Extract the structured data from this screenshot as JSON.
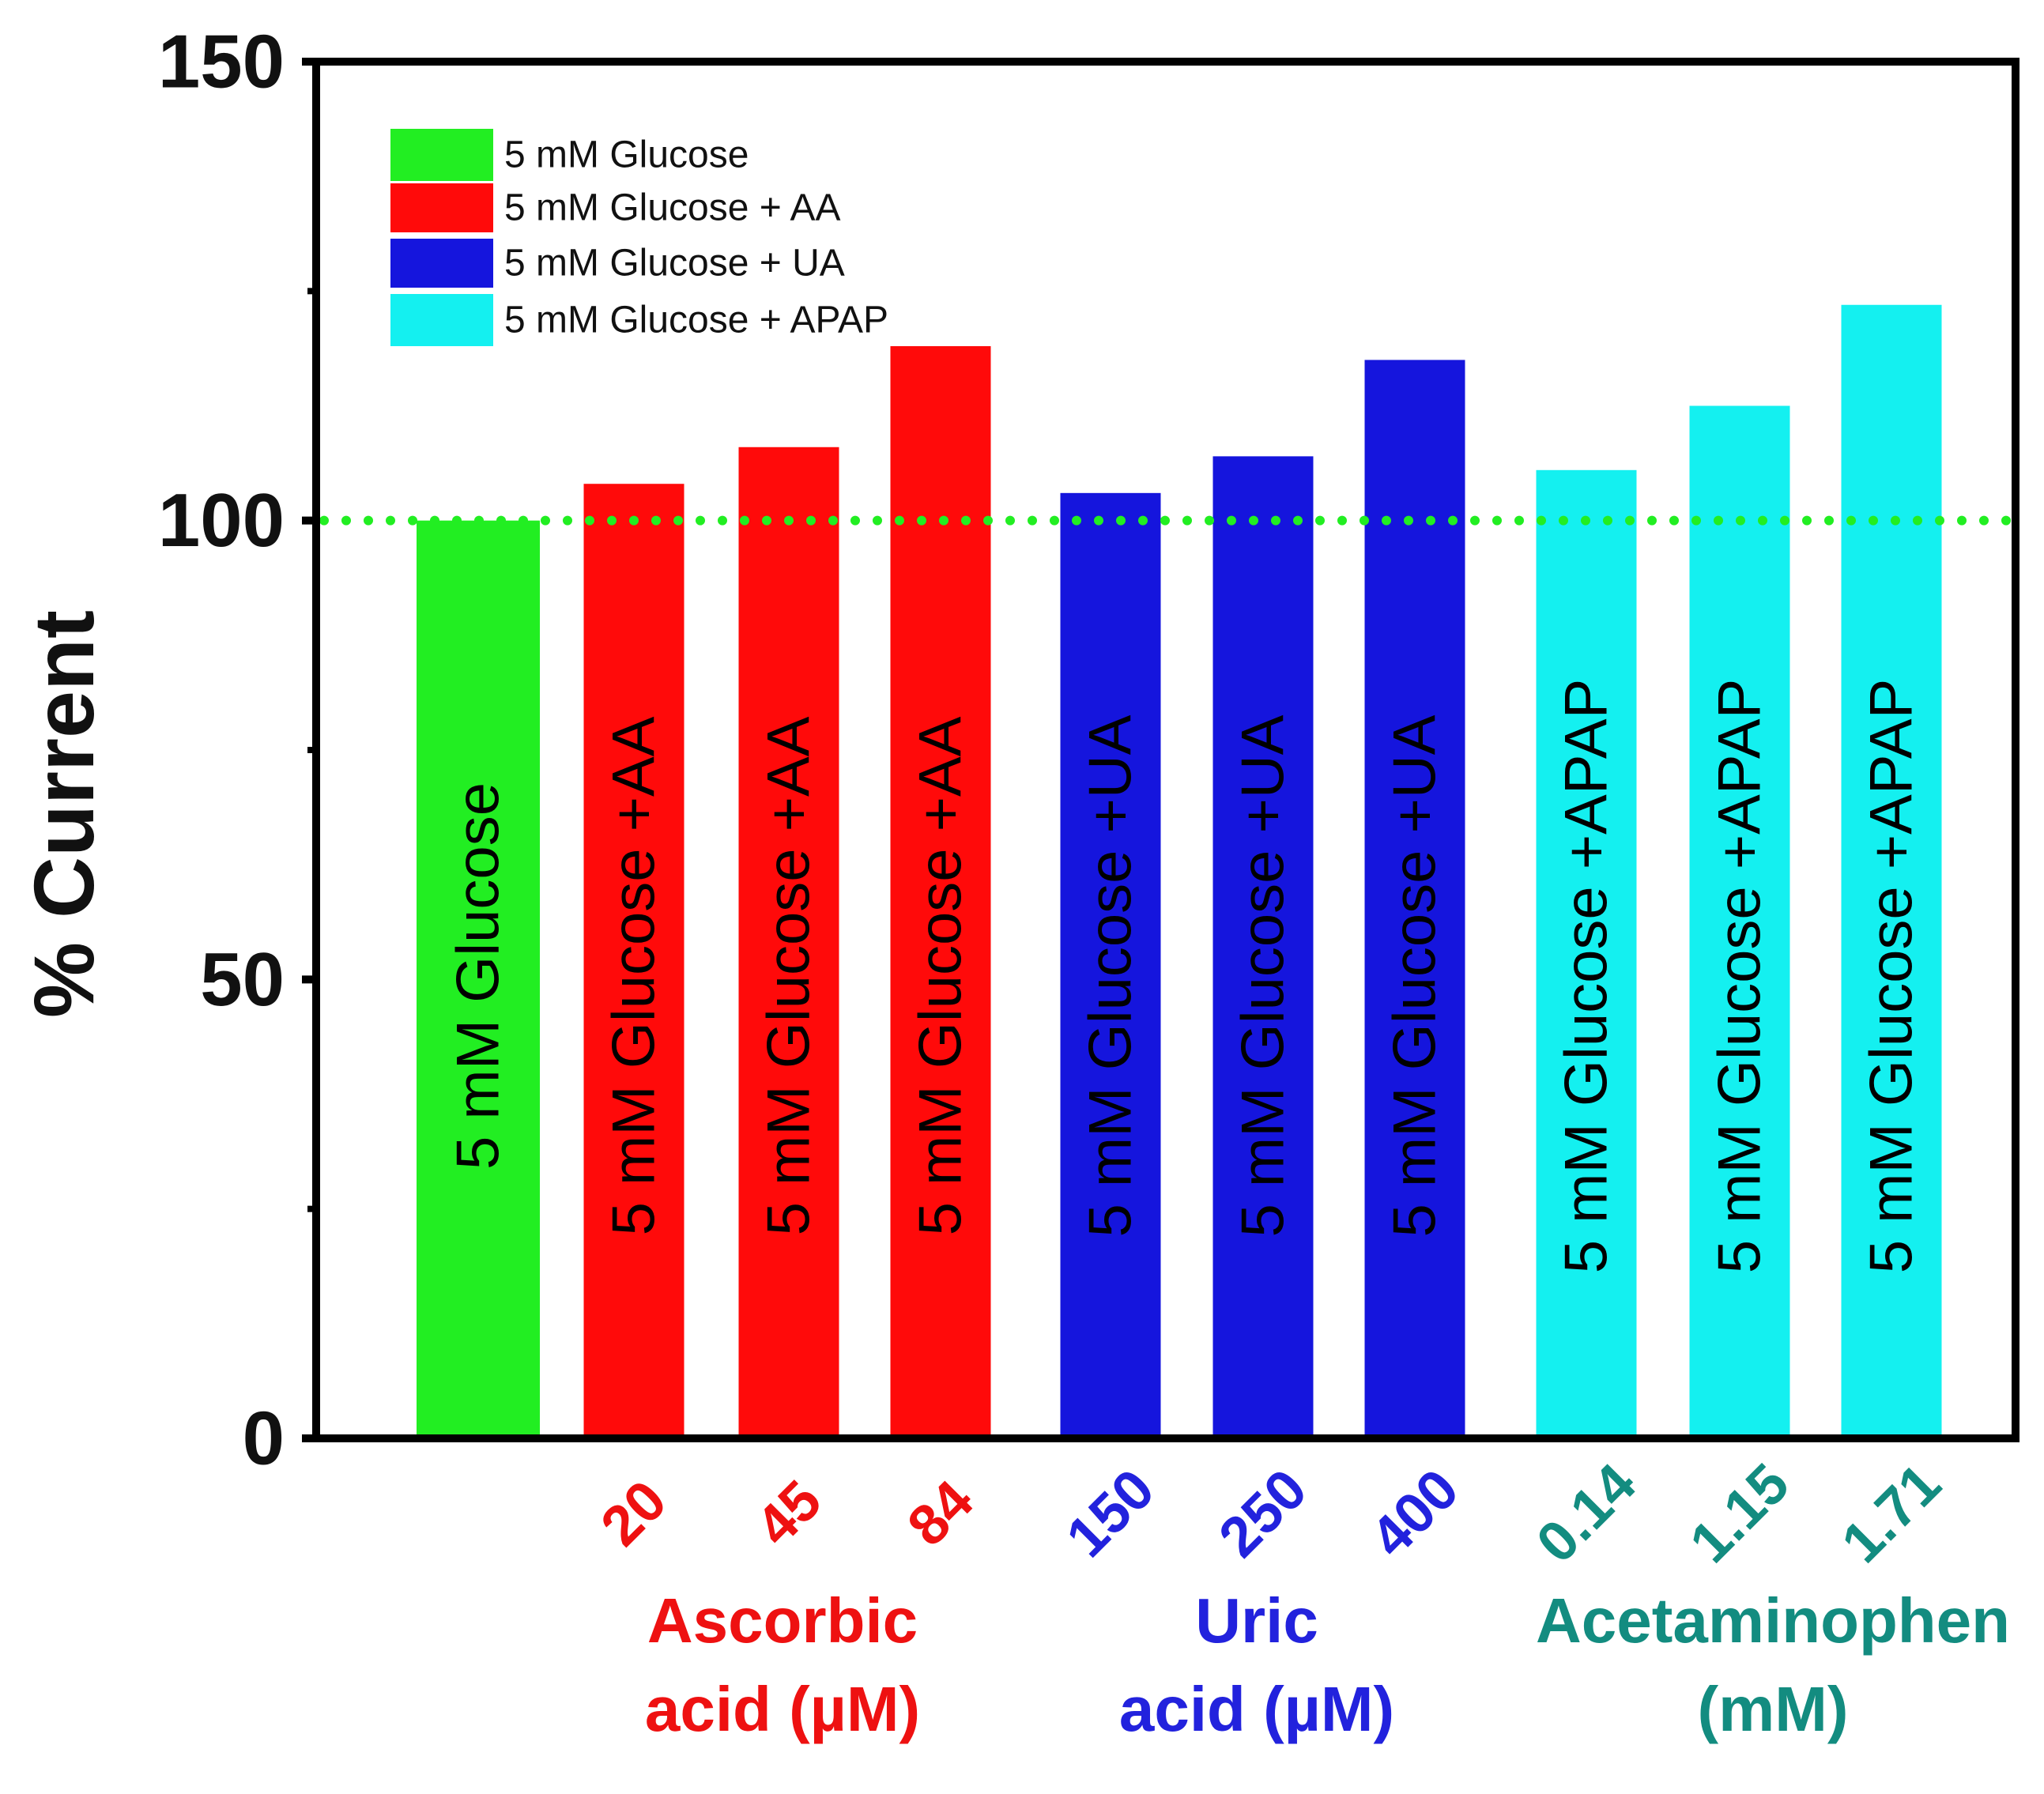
{
  "chart_data": {
    "type": "bar",
    "ylabel": "% Current",
    "ylim": [
      0,
      150
    ],
    "yticks": [
      0,
      50,
      100,
      150
    ],
    "reference_line": 100,
    "bars": [
      {
        "label": "5 mM Glucose",
        "value": 100,
        "series": "5 mM Glucose",
        "conc": ""
      },
      {
        "label": "5 mM Glucose +AA",
        "value": 104,
        "series": "5 mM Glucose + AA",
        "conc": "20"
      },
      {
        "label": "5 mM Glucose +AA",
        "value": 108,
        "series": "5 mM Glucose + AA",
        "conc": "45"
      },
      {
        "label": "5 mM Glucose +AA",
        "value": 119,
        "series": "5 mM Glucose + AA",
        "conc": "84"
      },
      {
        "label": "5 mM Glucose +UA",
        "value": 103,
        "series": "5 mM Glucose + UA",
        "conc": "150"
      },
      {
        "label": "5 mM Glucose +UA",
        "value": 107,
        "series": "5 mM Glucose + UA",
        "conc": "250"
      },
      {
        "label": "5 mM Glucose +UA",
        "value": 117.5,
        "series": "5 mM Glucose + UA",
        "conc": "400"
      },
      {
        "label": "5 mM Glucose +APAP",
        "value": 105.5,
        "series": "5 mM Glucose + APAP",
        "conc": "0.14"
      },
      {
        "label": "5 mM Glucose +APAP",
        "value": 112.5,
        "series": "5 mM Glucose + APAP",
        "conc": "1.15"
      },
      {
        "label": "5 mM Glucose +APAP",
        "value": 123.5,
        "series": "5 mM Glucose + APAP",
        "conc": "1.71"
      }
    ],
    "legend": [
      {
        "name": "5 mM Glucose",
        "color": "#22ee22"
      },
      {
        "name": "5 mM Glucose + AA",
        "color": "#ff0a0a"
      },
      {
        "name": "5 mM Glucose + UA",
        "color": "#1515dd"
      },
      {
        "name": "5 mM Glucose + APAP",
        "color": "#14f0f0"
      }
    ],
    "legend_placement": "top-left",
    "groups": [
      {
        "line1": "Ascorbic",
        "line2": "acid (µM)",
        "color": "#ee1111"
      },
      {
        "line1": "Uric",
        "line2": "acid (µM)",
        "color": "#2222dd"
      },
      {
        "line1": "Acetaminophen",
        "line2": "(mM)",
        "color": "#138c80"
      }
    ],
    "conc_colors": [
      "#ee1111",
      "#2222dd",
      "#138c80"
    ],
    "reference_line_color": "#22ee22"
  }
}
